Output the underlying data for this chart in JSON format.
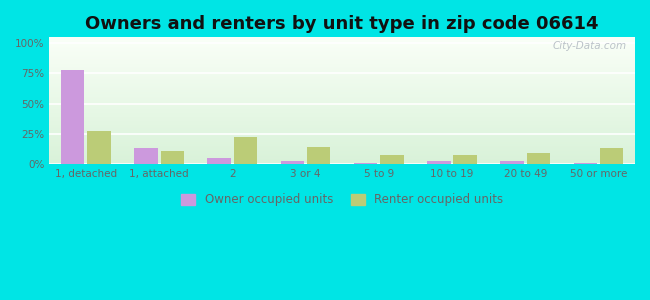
{
  "title": "Owners and renters by unit type in zip code 06614",
  "categories": [
    "1, detached",
    "1, attached",
    "2",
    "3 or 4",
    "5 to 9",
    "10 to 19",
    "20 to 49",
    "50 or more"
  ],
  "owner_values": [
    78,
    13,
    5,
    2,
    1,
    2,
    2,
    0.5
  ],
  "renter_values": [
    27,
    11,
    22,
    14,
    7,
    7,
    9,
    13
  ],
  "owner_color": "#cc99dd",
  "renter_color": "#bbcc77",
  "background_color": "#00e5e5",
  "ylabel_ticks": [
    "0%",
    "25%",
    "50%",
    "75%",
    "100%"
  ],
  "ytick_values": [
    0,
    25,
    50,
    75,
    100
  ],
  "ylim": [
    0,
    105
  ],
  "title_fontsize": 13,
  "tick_fontsize": 7.5,
  "legend_fontsize": 8.5,
  "watermark_text": "City-Data.com",
  "bar_width": 0.32,
  "bar_gap": 0.04,
  "grid_color": "#ffffff",
  "tick_color": "#666666",
  "title_color": "#111111"
}
